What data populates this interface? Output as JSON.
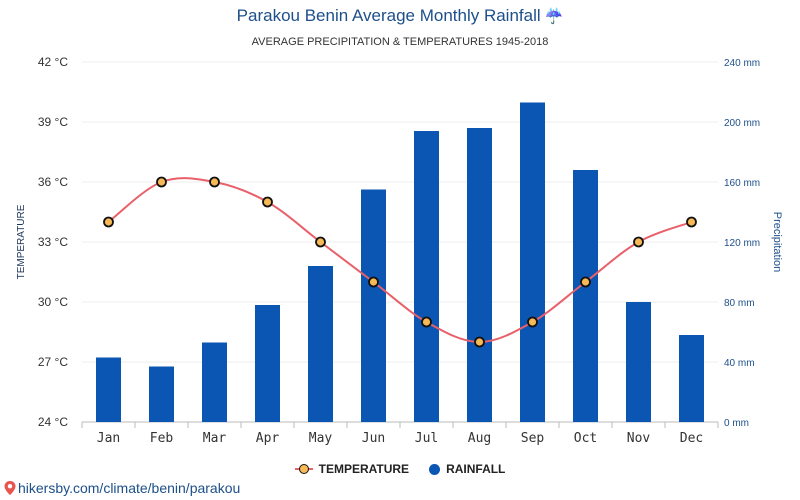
{
  "header": {
    "title": "Parakou Benin Average Monthly Rainfall",
    "title_icon": "umbrella-rain-icon",
    "subtitle": "AVERAGE PRECIPITATION & TEMPERATURES 1945-2018"
  },
  "legend": {
    "temperature_label": "TEMPERATURE",
    "rainfall_label": "RAINFALL"
  },
  "footer": {
    "source_text": "hikersby.com/climate/benin/parakou",
    "source_icon": "map-pin-icon"
  },
  "colors": {
    "bar": "#0b55b3",
    "line": "#e8606a",
    "marker_fill": "#f7b955",
    "marker_stroke": "#111111",
    "title": "#1d4f8a",
    "right_axis": "#1d4f8a"
  },
  "chart_data": {
    "type": "bar",
    "categories": [
      "Jan",
      "Feb",
      "Mar",
      "Apr",
      "May",
      "Jun",
      "Jul",
      "Aug",
      "Sep",
      "Oct",
      "Nov",
      "Dec"
    ],
    "series": [
      {
        "name": "RAINFALL",
        "type": "bar",
        "axis": "right",
        "values": [
          43,
          37,
          53,
          78,
          104,
          155,
          194,
          196,
          213,
          168,
          80,
          58
        ]
      },
      {
        "name": "TEMPERATURE",
        "type": "line",
        "axis": "left",
        "values": [
          34,
          36,
          36,
          35,
          33,
          31,
          29,
          28,
          29,
          31,
          33,
          34
        ]
      }
    ],
    "y_left": {
      "label": "TEMPERATURE",
      "min": 24,
      "max": 42,
      "ticks": [
        24,
        27,
        30,
        33,
        36,
        39,
        42
      ],
      "tick_labels": [
        "24 °C",
        "27 °C",
        "30 °C",
        "33 °C",
        "36 °C",
        "39 °C",
        "42 °C"
      ]
    },
    "y_right": {
      "label": "Precipitation",
      "min": 0,
      "max": 240,
      "ticks": [
        0,
        40,
        80,
        120,
        160,
        200,
        240
      ],
      "tick_labels": [
        "0 mm",
        "40 mm",
        "80 mm",
        "120 mm",
        "160 mm",
        "200 mm",
        "240 mm"
      ]
    },
    "grid": true,
    "legend_position": "bottom"
  }
}
